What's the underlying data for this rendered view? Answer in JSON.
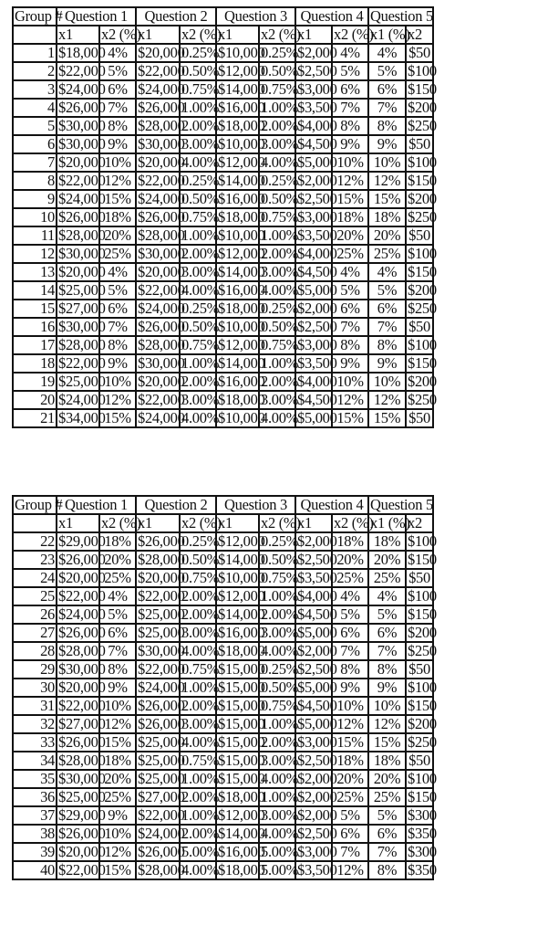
{
  "headers": {
    "group": "Group #",
    "questions": [
      "Question 1",
      "Question 2",
      "Question 3",
      "Question 4",
      "Question 5"
    ],
    "subheaders": [
      "x1",
      "x2 (%)",
      "x1",
      "x2 (%)",
      "x1",
      "x2 (%)",
      "x1",
      "x2 (%)",
      "x1 (%)",
      "x2"
    ]
  },
  "tables": [
    {
      "rows": [
        [
          "1",
          "$18,000",
          "4%",
          "$20,000",
          "0.25%",
          "$10,000",
          "0.25%",
          "$2,000",
          "4%",
          "4%",
          "$50"
        ],
        [
          "2",
          "$22,000",
          "5%",
          "$22,000",
          "0.50%",
          "$12,000",
          "0.50%",
          "$2,500",
          "5%",
          "5%",
          "$100"
        ],
        [
          "3",
          "$24,000",
          "6%",
          "$24,000",
          "0.75%",
          "$14,000",
          "0.75%",
          "$3,000",
          "6%",
          "6%",
          "$150"
        ],
        [
          "4",
          "$26,000",
          "7%",
          "$26,000",
          "1.00%",
          "$16,000",
          "1.00%",
          "$3,500",
          "7%",
          "7%",
          "$200"
        ],
        [
          "5",
          "$30,000",
          "8%",
          "$28,000",
          "2.00%",
          "$18,000",
          "2.00%",
          "$4,000",
          "8%",
          "8%",
          "$250"
        ],
        [
          "6",
          "$30,000",
          "9%",
          "$30,000",
          "3.00%",
          "$10,000",
          "3.00%",
          "$4,500",
          "9%",
          "9%",
          "$50"
        ],
        [
          "7",
          "$20,000",
          "10%",
          "$20,000",
          "4.00%",
          "$12,000",
          "4.00%",
          "$5,000",
          "10%",
          "10%",
          "$100"
        ],
        [
          "8",
          "$22,000",
          "12%",
          "$22,000",
          "0.25%",
          "$14,000",
          "0.25%",
          "$2,000",
          "12%",
          "12%",
          "$150"
        ],
        [
          "9",
          "$24,000",
          "15%",
          "$24,000",
          "0.50%",
          "$16,000",
          "0.50%",
          "$2,500",
          "15%",
          "15%",
          "$200"
        ],
        [
          "10",
          "$26,000",
          "18%",
          "$26,000",
          "0.75%",
          "$18,000",
          "0.75%",
          "$3,000",
          "18%",
          "18%",
          "$250"
        ],
        [
          "11",
          "$28,000",
          "20%",
          "$28,000",
          "1.00%",
          "$10,000",
          "1.00%",
          "$3,500",
          "20%",
          "20%",
          "$50"
        ],
        [
          "12",
          "$30,000",
          "25%",
          "$30,000",
          "2.00%",
          "$12,000",
          "2.00%",
          "$4,000",
          "25%",
          "25%",
          "$100"
        ],
        [
          "13",
          "$20,000",
          "4%",
          "$20,000",
          "3.00%",
          "$14,000",
          "3.00%",
          "$4,500",
          "4%",
          "4%",
          "$150"
        ],
        [
          "14",
          "$25,000",
          "5%",
          "$22,000",
          "4.00%",
          "$16,000",
          "4.00%",
          "$5,000",
          "5%",
          "5%",
          "$200"
        ],
        [
          "15",
          "$27,000",
          "6%",
          "$24,000",
          "0.25%",
          "$18,000",
          "0.25%",
          "$2,000",
          "6%",
          "6%",
          "$250"
        ],
        [
          "16",
          "$30,000",
          "7%",
          "$26,000",
          "0.50%",
          "$10,000",
          "0.50%",
          "$2,500",
          "7%",
          "7%",
          "$50"
        ],
        [
          "17",
          "$28,000",
          "8%",
          "$28,000",
          "0.75%",
          "$12,000",
          "0.75%",
          "$3,000",
          "8%",
          "8%",
          "$100"
        ],
        [
          "18",
          "$22,000",
          "9%",
          "$30,000",
          "1.00%",
          "$14,000",
          "1.00%",
          "$3,500",
          "9%",
          "9%",
          "$150"
        ],
        [
          "19",
          "$25,000",
          "10%",
          "$20,000",
          "2.00%",
          "$16,000",
          "2.00%",
          "$4,000",
          "10%",
          "10%",
          "$200"
        ],
        [
          "20",
          "$24,000",
          "12%",
          "$22,000",
          "3.00%",
          "$18,000",
          "3.00%",
          "$4,500",
          "12%",
          "12%",
          "$250"
        ],
        [
          "21",
          "$34,000",
          "15%",
          "$24,000",
          "4.00%",
          "$10,000",
          "4.00%",
          "$5,000",
          "15%",
          "15%",
          "$50"
        ]
      ]
    },
    {
      "rows": [
        [
          "22",
          "$29,000",
          "18%",
          "$26,000",
          "0.25%",
          "$12,000",
          "0.25%",
          "$2,000",
          "18%",
          "18%",
          "$100"
        ],
        [
          "23",
          "$26,000",
          "20%",
          "$28,000",
          "0.50%",
          "$14,000",
          "0.50%",
          "$2,500",
          "20%",
          "20%",
          "$150"
        ],
        [
          "24",
          "$20,000",
          "25%",
          "$20,000",
          "0.75%",
          "$10,000",
          "0.75%",
          "$3,500",
          "25%",
          "25%",
          "$50"
        ],
        [
          "25",
          "$22,000",
          "4%",
          "$22,000",
          "2.00%",
          "$12,000",
          "1.00%",
          "$4,000",
          "4%",
          "4%",
          "$100"
        ],
        [
          "26",
          "$24,000",
          "5%",
          "$25,000",
          "2.00%",
          "$14,000",
          "2.00%",
          "$4,500",
          "5%",
          "5%",
          "$150"
        ],
        [
          "27",
          "$26,000",
          "6%",
          "$25,000",
          "3.00%",
          "$16,000",
          "3.00%",
          "$5,000",
          "6%",
          "6%",
          "$200"
        ],
        [
          "28",
          "$28,000",
          "7%",
          "$30,000",
          "4.00%",
          "$18,000",
          "4.00%",
          "$2,000",
          "7%",
          "7%",
          "$250"
        ],
        [
          "29",
          "$30,000",
          "8%",
          "$22,000",
          "0.75%",
          "$15,000",
          "0.25%",
          "$2,500",
          "8%",
          "8%",
          "$50"
        ],
        [
          "30",
          "$20,000",
          "9%",
          "$24,000",
          "1.00%",
          "$15,000",
          "0.50%",
          "$5,000",
          "9%",
          "9%",
          "$100"
        ],
        [
          "31",
          "$22,000",
          "10%",
          "$26,000",
          "2.00%",
          "$15,000",
          "0.75%",
          "$4,500",
          "10%",
          "10%",
          "$150"
        ],
        [
          "32",
          "$27,000",
          "12%",
          "$26,000",
          "3.00%",
          "$15,000",
          "1.00%",
          "$5,000",
          "12%",
          "12%",
          "$200"
        ],
        [
          "33",
          "$26,000",
          "15%",
          "$25,000",
          "4.00%",
          "$15,000",
          "2.00%",
          "$3,000",
          "15%",
          "15%",
          "$250"
        ],
        [
          "34",
          "$28,000",
          "18%",
          "$25,000",
          "0.75%",
          "$15,000",
          "3.00%",
          "$2,500",
          "18%",
          "18%",
          "$50"
        ],
        [
          "35",
          "$30,000",
          "20%",
          "$25,000",
          "1.00%",
          "$15,000",
          "4.00%",
          "$2,000",
          "20%",
          "20%",
          "$100"
        ],
        [
          "36",
          "$25,000",
          "25%",
          "$27,000",
          "2.00%",
          "$18,000",
          "1.00%",
          "$2,000",
          "25%",
          "25%",
          "$150"
        ],
        [
          "37",
          "$29,000",
          "9%",
          "$22,000",
          "1.00%",
          "$12,000",
          "3.00%",
          "$2,000",
          "5%",
          "5%",
          "$300"
        ],
        [
          "38",
          "$26,000",
          "10%",
          "$24,000",
          "2.00%",
          "$14,000",
          "4.00%",
          "$2,500",
          "6%",
          "6%",
          "$350"
        ],
        [
          "39",
          "$20,000",
          "12%",
          "$26,000",
          "5.00%",
          "$16,000",
          "5.00%",
          "$3,000",
          "7%",
          "7%",
          "$300"
        ],
        [
          "40",
          "$22,000",
          "15%",
          "$28,000",
          "4.00%",
          "$18,000",
          "5.00%",
          "$3,500",
          "12%",
          "8%",
          "$350"
        ]
      ]
    }
  ]
}
